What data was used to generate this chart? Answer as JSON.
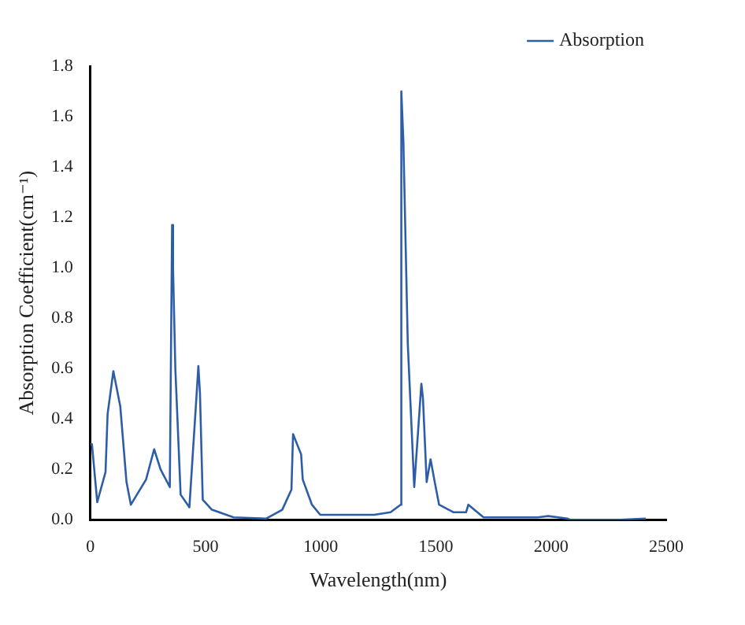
{
  "chart_data": {
    "type": "line",
    "xlabel": "Wavelength(nm)",
    "ylabel": "Absorption Coefficient(cm⁻¹)",
    "x": [
      0,
      7,
      10,
      30,
      66,
      75,
      100,
      130,
      157,
      176,
      242,
      277,
      305,
      345,
      355,
      359,
      369,
      392,
      430,
      458,
      469,
      476,
      488,
      528,
      622,
      763,
      833,
      873,
      880,
      915,
      922,
      962,
      998,
      1232,
      1303,
      1347,
      1350,
      1359,
      1378,
      1406,
      1437,
      1444,
      1460,
      1477,
      1495,
      1514,
      1577,
      1631,
      1641,
      1707,
      1941,
      1988,
      2070,
      2085,
      2300,
      2411
    ],
    "series": [
      {
        "name": "Absorption",
        "color": "#2e5da8",
        "values": [
          0.3,
          0.3,
          0.3,
          0.07,
          0.19,
          0.42,
          0.59,
          0.45,
          0.15,
          0.06,
          0.16,
          0.28,
          0.2,
          0.13,
          1.17,
          1.0,
          0.6,
          0.1,
          0.05,
          0.45,
          0.61,
          0.5,
          0.08,
          0.04,
          0.01,
          0.005,
          0.04,
          0.12,
          0.34,
          0.26,
          0.16,
          0.06,
          0.02,
          0.02,
          0.03,
          0.06,
          1.7,
          1.5,
          0.7,
          0.13,
          0.54,
          0.48,
          0.15,
          0.24,
          0.15,
          0.06,
          0.03,
          0.03,
          0.06,
          0.01,
          0.01,
          0.015,
          0.005,
          0,
          0,
          0.005
        ]
      }
    ],
    "xlim": [
      0,
      2500
    ],
    "xticks": [
      0,
      500,
      1000,
      1500,
      2000,
      2500
    ],
    "ylim": [
      0,
      1.8
    ],
    "yticks": [
      {
        "value": 0,
        "label": "0.0"
      },
      0.2,
      0.4,
      0.6,
      0.8,
      {
        "value": 1,
        "label": "1.0"
      },
      1.2,
      1.4,
      1.6,
      1.8
    ],
    "grid": false,
    "legend": "top right",
    "marker": "none",
    "line_style": "solid"
  }
}
